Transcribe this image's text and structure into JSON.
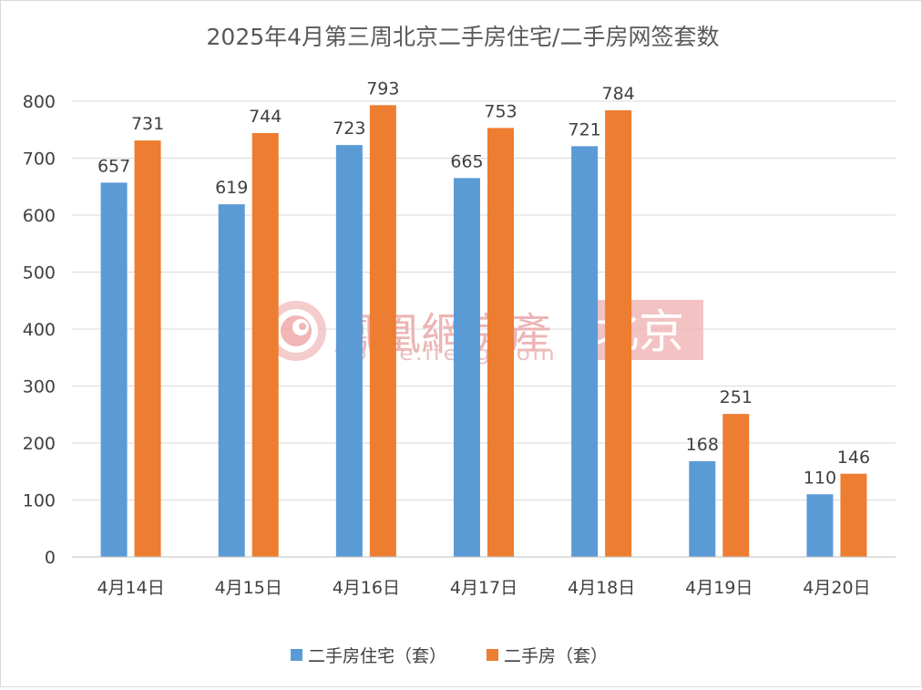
{
  "colors": {
    "series1": "#5B9BD5",
    "series2": "#ED7D31",
    "grid": "#d9d9d9",
    "text": "#404040",
    "watermark": "#f2b8b8"
  },
  "watermark": {
    "logo": "鳳凰網房產",
    "url": "house.ifeng.com",
    "city": "北京"
  },
  "chart_data": {
    "type": "bar",
    "title": "2025年4月第三周北京二手房住宅/二手房网签套数",
    "categories": [
      "4月14日",
      "4月15日",
      "4月16日",
      "4月17日",
      "4月18日",
      "4月19日",
      "4月20日"
    ],
    "series": [
      {
        "name": "二手房住宅（套）",
        "values": [
          657,
          619,
          723,
          665,
          721,
          168,
          110
        ]
      },
      {
        "name": "二手房（套）",
        "values": [
          731,
          744,
          793,
          753,
          784,
          251,
          146
        ]
      }
    ],
    "yticks": [
      0,
      100,
      200,
      300,
      400,
      500,
      600,
      700,
      800
    ],
    "ylim": [
      0,
      800
    ],
    "grid": true,
    "legend": "bottom",
    "data_labels": true
  }
}
